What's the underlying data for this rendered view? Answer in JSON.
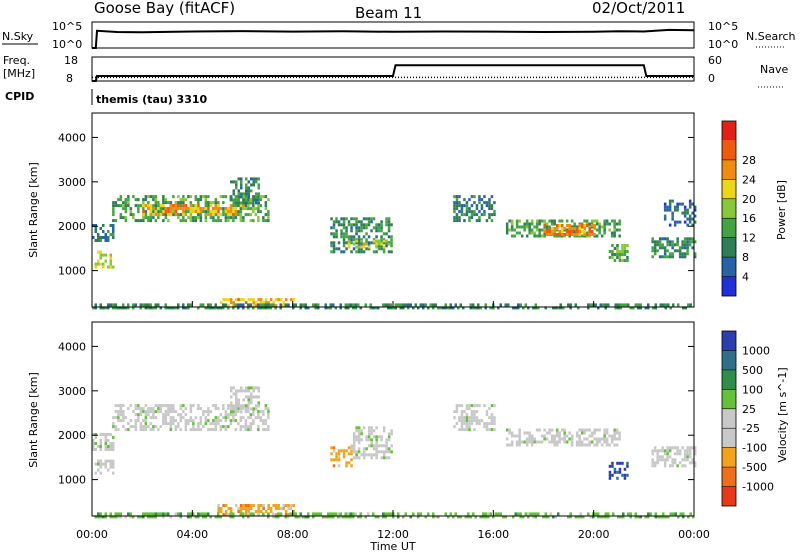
{
  "header": {
    "title": "Goose Bay (fitACF)",
    "beam": "Beam 11",
    "date": "02/Oct/2011"
  },
  "top_panels": {
    "nsky_label": "N.Sky",
    "nsky_ticks": [
      "10^5",
      "10^0"
    ],
    "nsearch_label": "N.Search",
    "nsearch_ticks": [
      "10^5",
      "10^0"
    ],
    "freq_label_1": "Freq.",
    "freq_label_2": "[MHz]",
    "freq_ticks": [
      "18",
      "8"
    ],
    "nave_label": "Nave",
    "nave_ticks": [
      "60",
      "0"
    ],
    "cpid_label": "CPID",
    "cpid_text": "themis (tau) 3310"
  },
  "colors": {
    "power_scale": [
      "#2030d8",
      "#2a62a8",
      "#2f7e55",
      "#43a343",
      "#86c83a",
      "#ecd619",
      "#f08d10",
      "#f05a0c",
      "#e12116"
    ],
    "velocity_scale": [
      "#2a3eb0",
      "#2f6f8a",
      "#2f8c4a",
      "#63c23a",
      "#c8c8c8",
      "#c8c8c8",
      "#f2a21b",
      "#ef6e1a",
      "#e43a1a"
    ],
    "line": "#000000"
  },
  "chart_data": [
    {
      "type": "line",
      "title": "N.Sky / N.Search",
      "ylabel": "N.Sky",
      "y2label": "N.Search",
      "yscale": "log",
      "ylim": [
        1,
        100000
      ],
      "x_hours": [
        0,
        0.15,
        0.2,
        1,
        2,
        4,
        6,
        8,
        10,
        12,
        14,
        16,
        18,
        20,
        21,
        22,
        23,
        24
      ],
      "series": [
        {
          "name": "N.Sky",
          "values": [
            1,
            1,
            2000,
            1200,
            1100,
            1500,
            1800,
            1400,
            1600,
            1300,
            1500,
            1400,
            1200,
            1300,
            1700,
            1500,
            3000,
            2500
          ]
        }
      ]
    },
    {
      "type": "line",
      "title": "Freq. / Nave",
      "ylabel": "Freq. [MHz]",
      "y2label": "Nave",
      "ylim": [
        8,
        18
      ],
      "y2lim": [
        0,
        60
      ],
      "x_hours": [
        0,
        0.15,
        0.2,
        12.0,
        12.1,
        22.0,
        22.1,
        24
      ],
      "series": [
        {
          "name": "Freq.",
          "values": [
            8,
            8,
            10.1,
            10.1,
            14.6,
            14.6,
            10.1,
            10.1
          ]
        },
        {
          "name": "Nave",
          "values": [
            9,
            9,
            9,
            9,
            9,
            9,
            9,
            9
          ]
        }
      ]
    },
    {
      "type": "heatmap",
      "title": "Power",
      "xlabel": "Time UT",
      "ylabel": "Slant Range [km]",
      "colorbar_label": "Power [dB]",
      "xlim": [
        0,
        24
      ],
      "ylim": [
        180,
        4550
      ],
      "x_ticks": [
        "00:00",
        "04:00",
        "08:00",
        "12:00",
        "16:00",
        "20:00",
        "00:00"
      ],
      "y_ticks": [
        1000,
        2000,
        3000,
        4000
      ],
      "colorbar_ticks": [
        4,
        8,
        12,
        16,
        20,
        24,
        28
      ],
      "clim": [
        0,
        32
      ],
      "regions": [
        {
          "t0": 0.0,
          "t1": 0.8,
          "r0": 1700,
          "r1": 2050,
          "level": 8
        },
        {
          "t0": 0.1,
          "t1": 0.8,
          "r0": 1100,
          "r1": 1450,
          "level": 18
        },
        {
          "t0": 0.8,
          "t1": 7.0,
          "r0": 2150,
          "r1": 2700,
          "level": 12
        },
        {
          "t0": 2.0,
          "t1": 6.0,
          "r0": 2250,
          "r1": 2500,
          "level": 22
        },
        {
          "t0": 5.5,
          "t1": 6.6,
          "r0": 2500,
          "r1": 3100,
          "level": 10
        },
        {
          "t0": 9.5,
          "t1": 11.9,
          "r0": 1400,
          "r1": 2200,
          "level": 10
        },
        {
          "t0": 10.2,
          "t1": 11.8,
          "r0": 1500,
          "r1": 1700,
          "level": 18
        },
        {
          "t0": 14.4,
          "t1": 16.0,
          "r0": 2100,
          "r1": 2700,
          "level": 8
        },
        {
          "t0": 16.5,
          "t1": 21.0,
          "r0": 1750,
          "r1": 2150,
          "level": 12
        },
        {
          "t0": 18.0,
          "t1": 20.0,
          "r0": 1800,
          "r1": 2050,
          "level": 24
        },
        {
          "t0": 20.6,
          "t1": 21.3,
          "r0": 1200,
          "r1": 1600,
          "level": 14
        },
        {
          "t0": 22.3,
          "t1": 24.0,
          "r0": 1300,
          "r1": 1750,
          "level": 10
        },
        {
          "t0": 22.8,
          "t1": 24.0,
          "r0": 2000,
          "r1": 2600,
          "level": 6
        },
        {
          "t0": 5.0,
          "t1": 8.0,
          "r0": 240,
          "r1": 380,
          "level": 22
        },
        {
          "t0": 0.0,
          "t1": 24.0,
          "r0": 180,
          "r1": 260,
          "level": 10
        }
      ]
    },
    {
      "type": "heatmap",
      "title": "Velocity",
      "xlabel": "Time UT",
      "ylabel": "Slant Range [km]",
      "colorbar_label": "Velocity [m s^-1]",
      "xlim": [
        0,
        24
      ],
      "ylim": [
        180,
        4550
      ],
      "x_ticks": [
        "00:00",
        "04:00",
        "08:00",
        "12:00",
        "16:00",
        "20:00",
        "00:00"
      ],
      "y_ticks": [
        1000,
        2000,
        3000,
        4000
      ],
      "colorbar_ticks": [
        "1000",
        "500",
        "100",
        "25",
        "-25",
        "-100",
        "-500",
        "-1000"
      ],
      "regions": [
        {
          "t0": 0.1,
          "t1": 0.8,
          "r0": 1150,
          "r1": 1450,
          "color_index": 4
        },
        {
          "t0": 0.0,
          "t1": 0.8,
          "r0": 1700,
          "r1": 2050,
          "color_index": 4
        },
        {
          "t0": 0.8,
          "t1": 7.0,
          "r0": 2150,
          "r1": 2700,
          "color_index": 4
        },
        {
          "t0": 5.5,
          "t1": 6.6,
          "r0": 2500,
          "r1": 3100,
          "color_index": 4
        },
        {
          "t0": 9.5,
          "t1": 10.3,
          "r0": 1300,
          "r1": 1750,
          "color_index": 6
        },
        {
          "t0": 10.3,
          "t1": 11.9,
          "r0": 1500,
          "r1": 2200,
          "color_index": 4
        },
        {
          "t0": 14.4,
          "t1": 16.0,
          "r0": 2100,
          "r1": 2700,
          "color_index": 4
        },
        {
          "t0": 16.5,
          "t1": 21.0,
          "r0": 1750,
          "r1": 2150,
          "color_index": 4
        },
        {
          "t0": 20.6,
          "t1": 21.3,
          "r0": 1000,
          "r1": 1400,
          "color_index": 0
        },
        {
          "t0": 22.3,
          "t1": 24.0,
          "r0": 1300,
          "r1": 1750,
          "color_index": 4
        },
        {
          "t0": 5.0,
          "t1": 8.0,
          "r0": 240,
          "r1": 450,
          "color_index": 6
        },
        {
          "t0": 0.0,
          "t1": 24.0,
          "r0": 180,
          "r1": 260,
          "color_index": 3
        }
      ]
    }
  ]
}
